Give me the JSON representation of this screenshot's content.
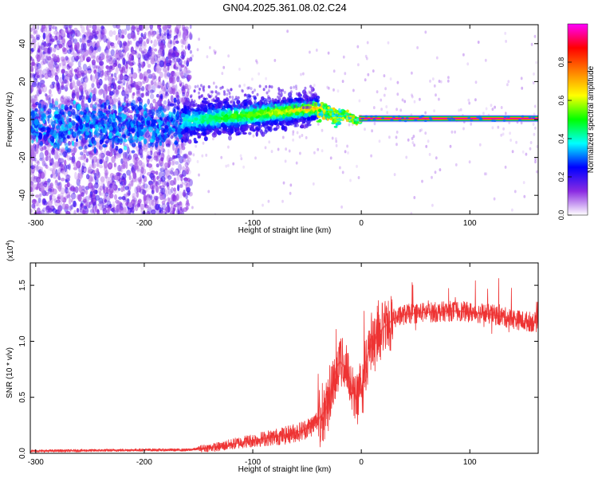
{
  "figure": {
    "title": "GN04.2025.361.08.02.C24"
  },
  "chart_data": [
    {
      "type": "heatmap",
      "title": "GN04.2025.361.08.02.C24",
      "xlabel": "Height of straight line (km)",
      "ylabel": "Frequency (Hz)",
      "xlim": [
        -305,
        163
      ],
      "ylim": [
        -50,
        50
      ],
      "x_ticks": [
        -300,
        -200,
        -100,
        0,
        100
      ],
      "y_ticks": [
        -40,
        -20,
        0,
        20,
        40
      ],
      "colorbar": {
        "label": "Normalized spectral amplitude",
        "range": [
          0,
          1
        ],
        "ticks": [
          0.0,
          0.2,
          0.4,
          0.6,
          0.8
        ],
        "colormap": [
          "#ffffff",
          "#8a2be2",
          "#0000ff",
          "#00ffff",
          "#00ff00",
          "#ffff00",
          "#ff8000",
          "#ff0000",
          "#ff00ff"
        ]
      },
      "features": [
        {
          "name": "diffuse noise",
          "x_range": [
            -305,
            -165
          ],
          "freq_range": [
            -50,
            50
          ],
          "amplitude": 0.15
        },
        {
          "name": "tapering band",
          "x_range": [
            -165,
            -40
          ],
          "freq_range": [
            -8,
            16
          ],
          "amplitude": 0.4
        },
        {
          "name": "converging signal",
          "x_range": [
            -40,
            0
          ],
          "freq_range": [
            -2,
            4
          ],
          "amplitude": 0.6
        },
        {
          "name": "steady line",
          "x_range": [
            0,
            163
          ],
          "freq_center": 0.5,
          "amplitude": 1.0
        }
      ]
    },
    {
      "type": "line",
      "xlabel": "Height of straight line (km)",
      "ylabel": "SNR (10 * v/v)",
      "scale_label": "(x10",
      "scale_exp": "4",
      "scale_close": ")",
      "xlim": [
        -305,
        163
      ],
      "ylim": [
        0,
        1.7
      ],
      "x_ticks": [
        -300,
        -200,
        -100,
        0,
        100
      ],
      "y_ticks": [
        0.0,
        0.5,
        1.0,
        1.5
      ],
      "color": "#ee3333",
      "series": [
        {
          "name": "SNR",
          "x": [
            -305,
            -250,
            -200,
            -160,
            -130,
            -110,
            -90,
            -70,
            -55,
            -45,
            -38,
            -32,
            -28,
            -24,
            -20,
            -16,
            -12,
            -8,
            -4,
            0,
            5,
            10,
            15,
            20,
            25,
            30,
            40,
            50,
            60,
            70,
            80,
            90,
            100,
            110,
            120,
            130,
            140,
            150,
            163
          ],
          "values": [
            0.02,
            0.025,
            0.03,
            0.03,
            0.06,
            0.1,
            0.13,
            0.16,
            0.2,
            0.25,
            0.32,
            0.4,
            0.55,
            0.75,
            0.82,
            0.78,
            0.72,
            0.55,
            0.5,
            0.55,
            0.85,
            0.98,
            1.05,
            1.12,
            1.16,
            1.2,
            1.24,
            1.25,
            1.26,
            1.26,
            1.27,
            1.27,
            1.26,
            1.25,
            1.24,
            1.22,
            1.2,
            1.18,
            1.17
          ]
        }
      ]
    }
  ]
}
